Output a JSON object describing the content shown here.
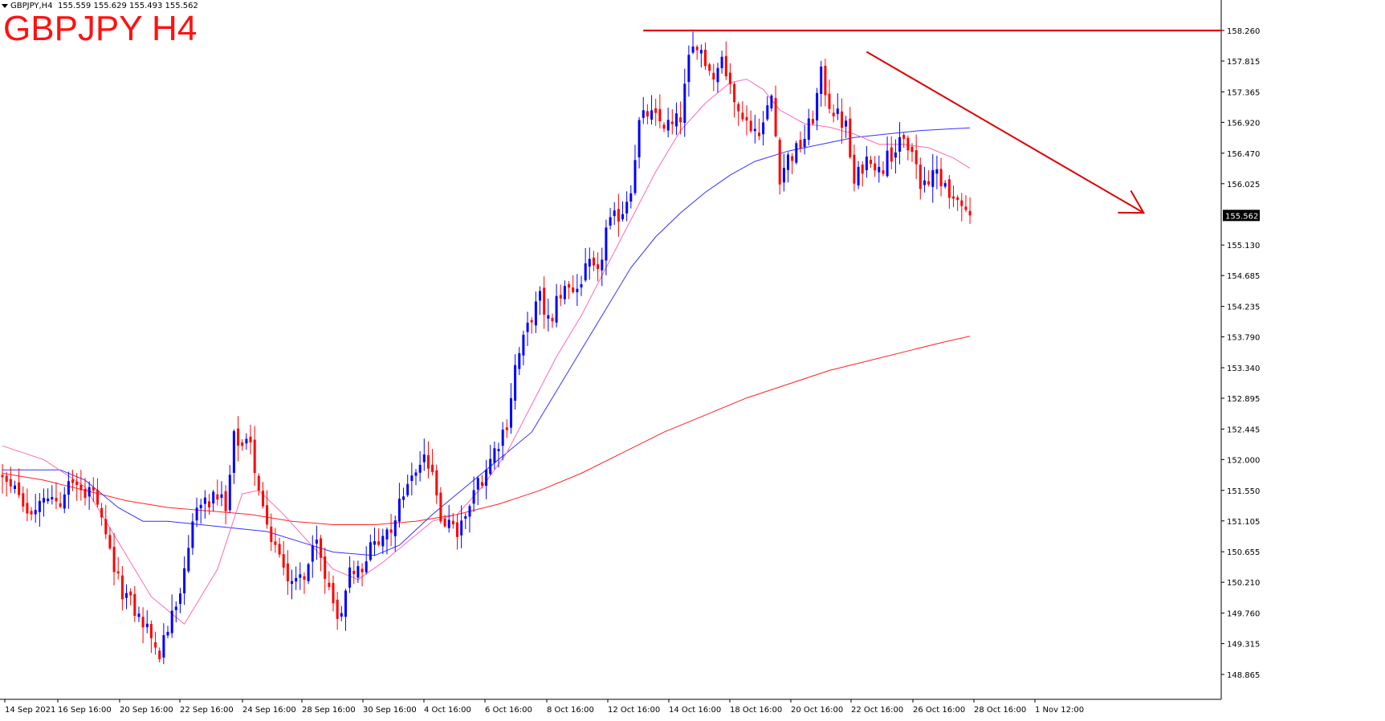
{
  "symbol_info": {
    "label": "GBPJPY,H4",
    "ohlc": "155.559 155.629 155.493 155.562"
  },
  "chart_title": "GBPJPY H4",
  "colors": {
    "bull": "#0000ff",
    "bear": "#ff0000",
    "ma_fast": "#ff69b4",
    "ma_mid": "#3333ff",
    "ma_slow": "#ff2222",
    "annotation": "#dd0000",
    "axis": "#000000",
    "background": "#ffffff"
  },
  "chart_data": {
    "type": "candlestick",
    "ylim": [
      148.7,
      158.4
    ],
    "y_ticks": [
      "158.260",
      "157.815",
      "157.365",
      "156.920",
      "156.470",
      "156.025",
      "155.130",
      "154.685",
      "154.235",
      "153.790",
      "153.340",
      "152.895",
      "152.445",
      "152.000",
      "151.550",
      "151.105",
      "150.655",
      "150.210",
      "149.760",
      "149.315",
      "148.865"
    ],
    "current_price": "155.562",
    "x_labels": [
      "14 Sep 2021",
      "16 Sep 16:00",
      "20 Sep 16:00",
      "22 Sep 16:00",
      "24 Sep 16:00",
      "28 Sep 16:00",
      "30 Sep 16:00",
      "4 Oct 16:00",
      "6 Oct 16:00",
      "8 Oct 16:00",
      "12 Oct 16:00",
      "14 Oct 16:00",
      "18 Oct 16:00",
      "20 Oct 16:00",
      "22 Oct 16:00",
      "26 Oct 16:00",
      "28 Oct 16:00",
      "1 Nov 12:00"
    ],
    "close_path": [
      [
        0,
        151.7
      ],
      [
        6,
        151.25
      ],
      [
        12,
        151.4
      ],
      [
        18,
        151.7
      ],
      [
        22,
        151.45
      ],
      [
        28,
        150.2
      ],
      [
        34,
        149.6
      ],
      [
        38,
        149.2
      ],
      [
        42,
        149.85
      ],
      [
        44,
        150.35
      ],
      [
        46,
        151.2
      ],
      [
        52,
        151.45
      ],
      [
        54,
        151.2
      ],
      [
        56,
        152.3
      ],
      [
        60,
        152.15
      ],
      [
        64,
        151.1
      ],
      [
        68,
        150.4
      ],
      [
        72,
        150.2
      ],
      [
        76,
        150.75
      ],
      [
        78,
        150.3
      ],
      [
        80,
        150.0
      ],
      [
        82,
        149.6
      ],
      [
        84,
        150.45
      ],
      [
        86,
        150.4
      ],
      [
        90,
        150.85
      ],
      [
        94,
        151.05
      ],
      [
        98,
        151.65
      ],
      [
        100,
        151.85
      ],
      [
        102,
        152.1
      ],
      [
        104,
        151.7
      ],
      [
        106,
        151.2
      ],
      [
        110,
        150.9
      ],
      [
        114,
        151.55
      ],
      [
        118,
        152.0
      ],
      [
        122,
        152.55
      ],
      [
        124,
        153.35
      ],
      [
        128,
        154.1
      ],
      [
        130,
        154.35
      ],
      [
        132,
        154.0
      ],
      [
        136,
        154.55
      ],
      [
        138,
        154.35
      ],
      [
        140,
        154.65
      ],
      [
        142,
        154.8
      ],
      [
        144,
        154.65
      ],
      [
        146,
        155.35
      ],
      [
        150,
        155.65
      ],
      [
        152,
        156.0
      ],
      [
        154,
        156.9
      ],
      [
        156,
        157.05
      ],
      [
        158,
        156.95
      ],
      [
        162,
        156.85
      ],
      [
        164,
        157.0
      ],
      [
        166,
        157.8
      ],
      [
        168,
        158.15
      ],
      [
        170,
        157.85
      ],
      [
        172,
        157.55
      ],
      [
        174,
        157.85
      ],
      [
        176,
        157.45
      ],
      [
        178,
        157.2
      ],
      [
        180,
        157.0
      ],
      [
        182,
        156.8
      ],
      [
        184,
        156.9
      ],
      [
        186,
        157.3
      ],
      [
        188,
        156.15
      ],
      [
        190,
        156.4
      ],
      [
        192,
        156.5
      ],
      [
        194,
        156.7
      ],
      [
        196,
        157.0
      ],
      [
        198,
        157.6
      ],
      [
        200,
        157.2
      ],
      [
        202,
        157.0
      ],
      [
        204,
        156.85
      ],
      [
        206,
        156.0
      ],
      [
        208,
        156.3
      ],
      [
        210,
        156.45
      ],
      [
        212,
        156.2
      ],
      [
        214,
        156.4
      ],
      [
        216,
        156.55
      ],
      [
        218,
        156.6
      ],
      [
        220,
        156.55
      ],
      [
        222,
        156.0
      ],
      [
        224,
        156.1
      ],
      [
        226,
        156.2
      ],
      [
        228,
        156.0
      ],
      [
        230,
        155.8
      ],
      [
        232,
        155.65
      ],
      [
        234,
        155.56
      ]
    ],
    "ma_fast": [
      [
        0,
        152.2
      ],
      [
        10,
        152.0
      ],
      [
        20,
        151.6
      ],
      [
        28,
        150.8
      ],
      [
        36,
        150.0
      ],
      [
        44,
        149.6
      ],
      [
        52,
        150.4
      ],
      [
        58,
        151.5
      ],
      [
        62,
        151.55
      ],
      [
        68,
        151.2
      ],
      [
        74,
        150.8
      ],
      [
        80,
        150.4
      ],
      [
        86,
        150.25
      ],
      [
        92,
        150.5
      ],
      [
        98,
        150.8
      ],
      [
        104,
        151.1
      ],
      [
        110,
        151.2
      ],
      [
        116,
        151.6
      ],
      [
        122,
        152.1
      ],
      [
        128,
        152.8
      ],
      [
        134,
        153.5
      ],
      [
        140,
        154.1
      ],
      [
        146,
        154.8
      ],
      [
        152,
        155.5
      ],
      [
        158,
        156.2
      ],
      [
        164,
        156.8
      ],
      [
        170,
        157.2
      ],
      [
        176,
        157.5
      ],
      [
        180,
        157.55
      ],
      [
        184,
        157.4
      ],
      [
        188,
        157.1
      ],
      [
        194,
        156.9
      ],
      [
        200,
        156.85
      ],
      [
        206,
        156.75
      ],
      [
        212,
        156.6
      ],
      [
        218,
        156.6
      ],
      [
        224,
        156.55
      ],
      [
        230,
        156.4
      ],
      [
        234,
        156.25
      ]
    ],
    "ma_mid": [
      [
        0,
        151.85
      ],
      [
        14,
        151.85
      ],
      [
        20,
        151.7
      ],
      [
        28,
        151.3
      ],
      [
        34,
        151.1
      ],
      [
        40,
        151.1
      ],
      [
        48,
        151.05
      ],
      [
        56,
        151.0
      ],
      [
        64,
        150.95
      ],
      [
        72,
        150.8
      ],
      [
        80,
        150.65
      ],
      [
        90,
        150.6
      ],
      [
        96,
        150.75
      ],
      [
        104,
        151.2
      ],
      [
        112,
        151.6
      ],
      [
        120,
        152.0
      ],
      [
        128,
        152.4
      ],
      [
        134,
        153.0
      ],
      [
        140,
        153.6
      ],
      [
        146,
        154.2
      ],
      [
        152,
        154.8
      ],
      [
        158,
        155.25
      ],
      [
        164,
        155.6
      ],
      [
        170,
        155.9
      ],
      [
        176,
        156.15
      ],
      [
        182,
        156.35
      ],
      [
        190,
        156.5
      ],
      [
        198,
        156.6
      ],
      [
        206,
        156.7
      ],
      [
        214,
        156.75
      ],
      [
        222,
        156.8
      ],
      [
        228,
        156.82
      ],
      [
        234,
        156.84
      ]
    ],
    "ma_slow": [
      [
        0,
        151.8
      ],
      [
        10,
        151.7
      ],
      [
        20,
        151.55
      ],
      [
        30,
        151.4
      ],
      [
        40,
        151.3
      ],
      [
        50,
        151.25
      ],
      [
        60,
        151.2
      ],
      [
        70,
        151.1
      ],
      [
        80,
        151.05
      ],
      [
        90,
        151.05
      ],
      [
        100,
        151.1
      ],
      [
        110,
        151.2
      ],
      [
        120,
        151.35
      ],
      [
        130,
        151.55
      ],
      [
        140,
        151.8
      ],
      [
        150,
        152.1
      ],
      [
        160,
        152.4
      ],
      [
        170,
        152.65
      ],
      [
        180,
        152.9
      ],
      [
        190,
        153.1
      ],
      [
        200,
        153.3
      ],
      [
        210,
        153.45
      ],
      [
        220,
        153.6
      ],
      [
        228,
        153.72
      ],
      [
        234,
        153.8
      ]
    ],
    "annotations": {
      "resistance": {
        "price": 158.26,
        "from_bar": 155,
        "to_bar": 300
      },
      "trend_arrow": {
        "from": [
          209,
          157.95
        ],
        "to": [
          276,
          155.6
        ]
      }
    }
  }
}
